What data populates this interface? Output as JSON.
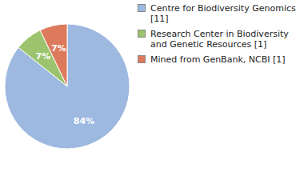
{
  "chart_data": {
    "type": "pie",
    "categories": [
      "Centre for Biodiversity Genomics [11]",
      "Research Center in Biodiversity and Genetic Resources [1]",
      "Mined from GenBank, NCBI [1]"
    ],
    "values": [
      84,
      7,
      7
    ],
    "value_labels": [
      "84%",
      "7%",
      "7%"
    ],
    "colors": [
      "#9db9e0",
      "#9cc46e",
      "#de7a5c"
    ],
    "data_labels": true,
    "legend": "right"
  }
}
